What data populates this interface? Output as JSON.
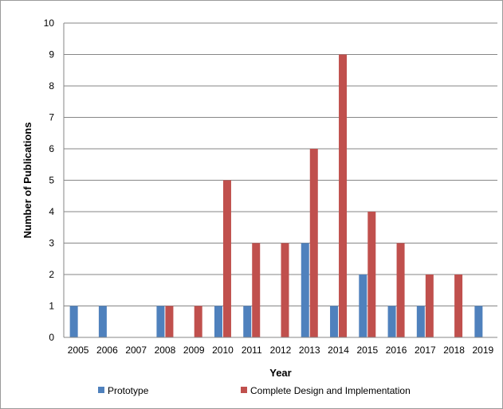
{
  "chart_data": {
    "type": "bar",
    "title": "",
    "xlabel": "Year",
    "ylabel": "Number of Publications",
    "categories": [
      "2005",
      "2006",
      "2007",
      "2008",
      "2009",
      "2010",
      "2011",
      "2012",
      "2013",
      "2014",
      "2015",
      "2016",
      "2017",
      "2018",
      "2019"
    ],
    "series": [
      {
        "name": "Prototype",
        "color": "#4f81bd",
        "values": [
          1,
          1,
          0,
          1,
          0,
          1,
          1,
          0,
          3,
          1,
          2,
          1,
          1,
          0,
          1
        ]
      },
      {
        "name": "Complete Design and Implementation",
        "color": "#c0504d",
        "values": [
          0,
          0,
          0,
          1,
          1,
          5,
          3,
          3,
          6,
          9,
          4,
          3,
          2,
          2,
          0
        ]
      }
    ],
    "ylim": [
      0,
      10
    ],
    "yticks": [
      0,
      1,
      2,
      3,
      4,
      5,
      6,
      7,
      8,
      9,
      10
    ],
    "grid": true,
    "legend_position": "bottom"
  }
}
